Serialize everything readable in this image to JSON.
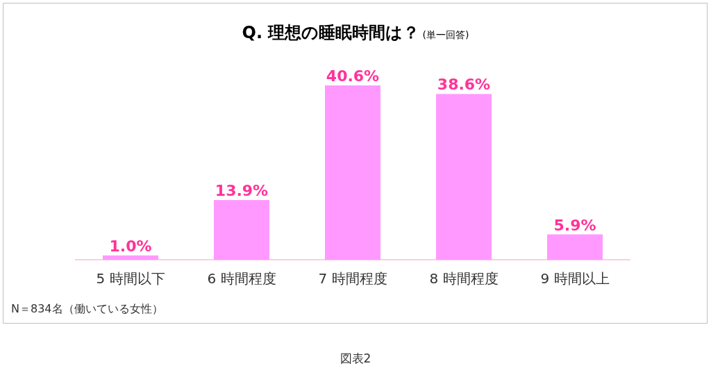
{
  "chart_data": {
    "type": "bar",
    "title": "Q.  理想の睡眠時間は？",
    "subtitle": "(単一回答)",
    "categories": [
      "5 時間以下",
      "6 時間程度",
      "7 時間程度",
      "8 時間程度",
      "9 時間以上"
    ],
    "values": [
      1.0,
      13.9,
      40.6,
      38.6,
      5.9
    ],
    "color": "#ff99ff",
    "data_labels": true,
    "value_labels": [
      "1.0%",
      "13.9%",
      "40.6%",
      "38.6%",
      "5.9%"
    ],
    "annotations": [
      "N＝834名（働いている女性）",
      "図表2"
    ]
  }
}
